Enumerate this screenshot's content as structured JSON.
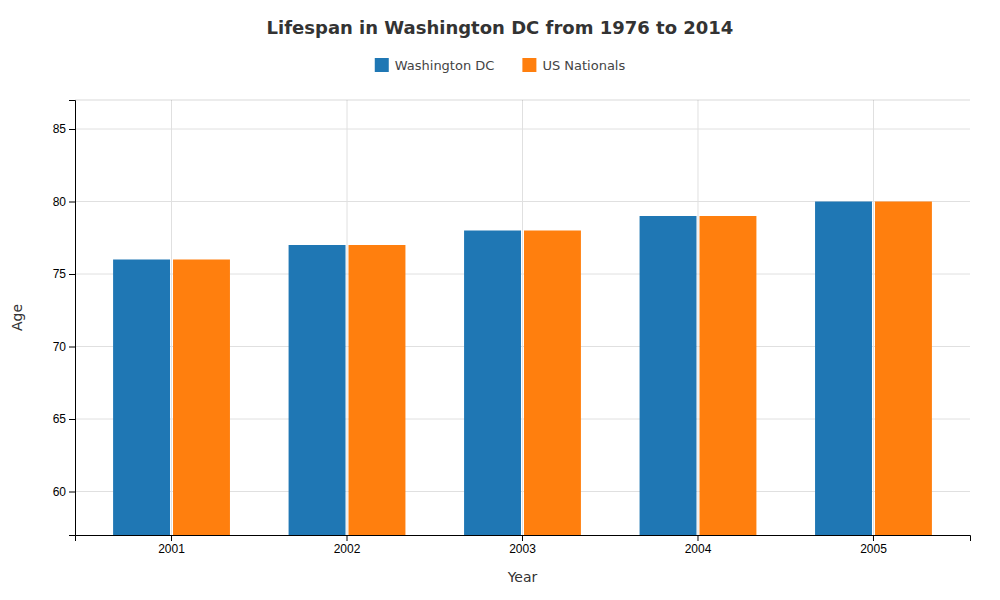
{
  "chart_data": {
    "type": "bar",
    "title": "Lifespan in Washington DC from 1976 to 2014",
    "xlabel": "Year",
    "ylabel": "Age",
    "categories": [
      "2001",
      "2002",
      "2003",
      "2004",
      "2005"
    ],
    "series": [
      {
        "name": "Washington DC",
        "values": [
          76,
          77,
          78,
          79,
          80
        ]
      },
      {
        "name": "US Nationals",
        "values": [
          76,
          77,
          78,
          79,
          80
        ]
      }
    ],
    "ylim": [
      57,
      87
    ],
    "yticks": [
      60,
      65,
      70,
      75,
      80,
      85
    ],
    "grid": true,
    "legend": "top"
  }
}
